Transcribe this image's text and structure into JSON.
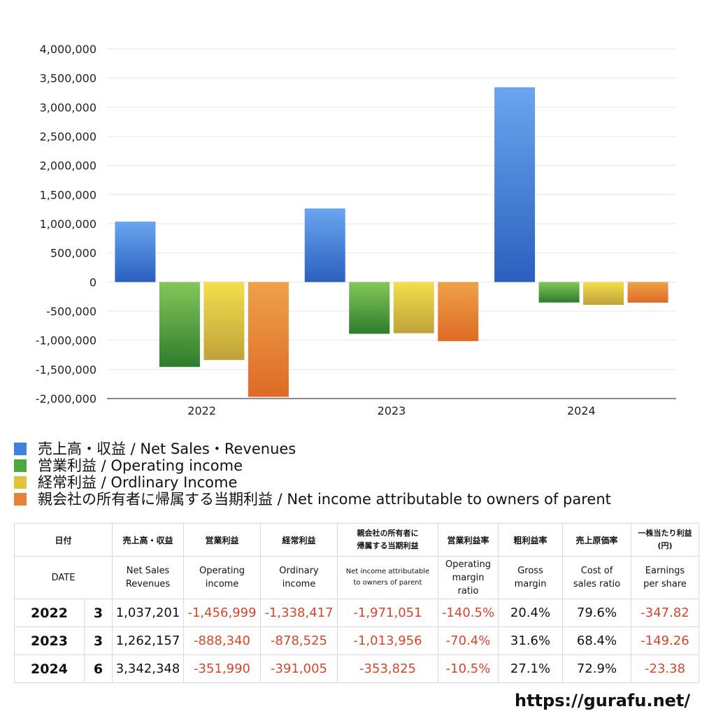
{
  "chart_data": {
    "type": "bar",
    "categories": [
      "2022",
      "2023",
      "2024"
    ],
    "series": [
      {
        "name": "売上高・収益 / Net Sales・Revenues",
        "values": [
          1037201,
          1262157,
          3342348
        ],
        "color_top": "#6aa6f0",
        "color_bottom": "#2b60be"
      },
      {
        "name": "営業利益 / Operating income",
        "values": [
          -1456999,
          -888340,
          -351990
        ],
        "color_top": "#84c75a",
        "color_bottom": "#2e7d2c"
      },
      {
        "name": "経常利益 / Ordlinary Income",
        "values": [
          -1338417,
          -878525,
          -391005
        ],
        "color_top": "#f3df4c",
        "color_bottom": "#bfa23a"
      },
      {
        "name": "親会社の所有者に帰属する当期利益 / Net income attributable to owners of parent",
        "values": [
          -1971051,
          -1013956,
          -353825
        ],
        "color_top": "#eea249",
        "color_bottom": "#de6a26"
      }
    ],
    "ylim": [
      -2000000,
      4000000
    ],
    "yticks": [
      "4,000,000",
      "3,500,000",
      "3,000,000",
      "2,500,000",
      "2,000,000",
      "1,500,000",
      "1,000,000",
      "500,000",
      "0",
      "-500,000",
      "-1,000,000",
      "-1,500,000",
      "-2,000,000"
    ],
    "ytick_values": [
      4000000,
      3500000,
      3000000,
      2500000,
      2000000,
      1500000,
      1000000,
      500000,
      0,
      -500000,
      -1000000,
      -1500000,
      -2000000
    ],
    "grid": true,
    "legend_position": "bottom"
  },
  "legend": [
    {
      "label": "売上高・収益 / Net Sales・Revenues",
      "color": "#3f80e0"
    },
    {
      "label": "営業利益 / Operating income",
      "color": "#4ea840"
    },
    {
      "label": "経常利益 / Ordlinary Income",
      "color": "#e2c43c"
    },
    {
      "label": "親会社の所有者に帰属する当期利益 / Net income attributable to owners of parent",
      "color": "#e6823a"
    }
  ],
  "table": {
    "headers_ja": [
      "日付",
      "売上高・収益",
      "営業利益",
      "経常利益",
      "親会社の所有者に",
      "帰属する当期利益",
      "営業利益率",
      "粗利益率",
      "売上原価率",
      "一株当たり利益",
      "(円)"
    ],
    "headers_en": {
      "date": "DATE",
      "sales_1": "Net Sales",
      "sales_2": "Revenues",
      "op_1": "Operating",
      "op_2": "income",
      "ord_1": "Ordinary",
      "ord_2": "income",
      "ni_1": "Net income attributable",
      "ni_2": "to owners of parent",
      "opm_1": "Operating",
      "opm_2": "margin",
      "opm_3": "ratio",
      "gm_1": "Gross",
      "gm_2": "margin",
      "cos_1": "Cost of",
      "cos_2": "sales ratio",
      "eps_1": "Earnings",
      "eps_2": "per share"
    },
    "rows": [
      {
        "year": "2022",
        "month": "3",
        "sales": "1,037,201",
        "op": "-1,456,999",
        "ord": "-1,338,417",
        "ni": "-1,971,051",
        "opm": "-140.5%",
        "gm": "20.4%",
        "cos": "79.6%",
        "eps": "-347.82"
      },
      {
        "year": "2023",
        "month": "3",
        "sales": "1,262,157",
        "op": "-888,340",
        "ord": "-878,525",
        "ni": "-1,013,956",
        "opm": "-70.4%",
        "gm": "31.6%",
        "cos": "68.4%",
        "eps": "-149.26"
      },
      {
        "year": "2024",
        "month": "6",
        "sales": "3,342,348",
        "op": "-351,990",
        "ord": "-391,005",
        "ni": "-353,825",
        "opm": "-10.5%",
        "gm": "27.1%",
        "cos": "72.9%",
        "eps": "-23.38"
      }
    ]
  },
  "footer": {
    "site": "https://gurafu.net/"
  }
}
